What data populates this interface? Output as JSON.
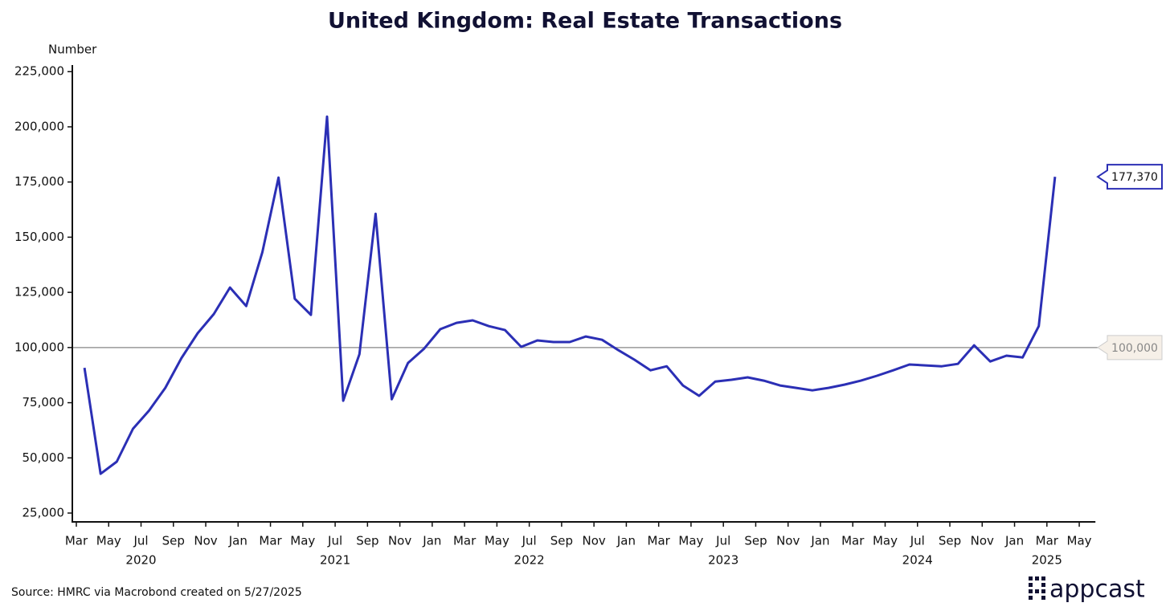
{
  "chart_data": {
    "type": "line",
    "title": "United Kingdom: Real Estate Transactions",
    "y_label": "Number",
    "source": "Source: HMRC via Macrobond created on 5/27/2025",
    "logo": "appcast",
    "color": "#2b2fb5",
    "x": [
      "2020-03",
      "2020-04",
      "2020-05",
      "2020-06",
      "2020-07",
      "2020-08",
      "2020-09",
      "2020-10",
      "2020-11",
      "2020-12",
      "2021-01",
      "2021-02",
      "2021-03",
      "2021-04",
      "2021-05",
      "2021-06",
      "2021-07",
      "2021-08",
      "2021-09",
      "2021-10",
      "2021-11",
      "2021-12",
      "2022-01",
      "2022-02",
      "2022-03",
      "2022-04",
      "2022-05",
      "2022-06",
      "2022-07",
      "2022-08",
      "2022-09",
      "2022-10",
      "2022-11",
      "2022-12",
      "2023-01",
      "2023-02",
      "2023-03",
      "2023-04",
      "2023-05",
      "2023-06",
      "2023-07",
      "2023-08",
      "2023-09",
      "2023-10",
      "2023-11",
      "2023-12",
      "2024-01",
      "2024-02",
      "2024-03",
      "2024-04",
      "2024-05",
      "2024-06",
      "2024-07",
      "2024-08",
      "2024-09",
      "2024-10",
      "2024-11",
      "2024-12",
      "2025-01",
      "2025-02",
      "2025-03"
    ],
    "values": [
      90800,
      42800,
      48300,
      63200,
      71500,
      81700,
      95200,
      106500,
      115200,
      127200,
      118800,
      143200,
      177000,
      122100,
      114800,
      204600,
      75900,
      97000,
      160600,
      76600,
      93000,
      99500,
      108300,
      111200,
      112300,
      109700,
      107900,
      100300,
      103200,
      102500,
      102500,
      105000,
      103500,
      98800,
      94500,
      89700,
      91500,
      82800,
      78100,
      84600,
      85400,
      86500,
      85000,
      82800,
      81700,
      80600,
      81700,
      83200,
      85000,
      87200,
      89700,
      92300,
      91900,
      91500,
      92600,
      101000,
      93700,
      96300,
      95500,
      109700,
      177370
    ],
    "value_labels": [
      null,
      null,
      null,
      null,
      null,
      null,
      null,
      null,
      null,
      null,
      null,
      null,
      null,
      null,
      null,
      null,
      null,
      null,
      null,
      null,
      null,
      null,
      null,
      null,
      null,
      null,
      null,
      null,
      null,
      null,
      null,
      null,
      null,
      null,
      null,
      null,
      null,
      null,
      null,
      null,
      null,
      null,
      null,
      null,
      null,
      null,
      null,
      null,
      null,
      null,
      null,
      null,
      null,
      null,
      null,
      null,
      null,
      null,
      null,
      null,
      "177,370"
    ],
    "xlim": [
      "2020-03",
      "2025-06"
    ],
    "xticks": [
      {
        "value": "2020-03",
        "label": "Mar"
      },
      {
        "value": "2020-05",
        "label": "May"
      },
      {
        "value": "2020-07",
        "label": "Jul"
      },
      {
        "value": "2020-09",
        "label": "Sep"
      },
      {
        "value": "2020-11",
        "label": "Nov"
      },
      {
        "value": "2021-01",
        "label": "Jan"
      },
      {
        "value": "2021-03",
        "label": "Mar"
      },
      {
        "value": "2021-05",
        "label": "May"
      },
      {
        "value": "2021-07",
        "label": "Jul"
      },
      {
        "value": "2021-09",
        "label": "Sep"
      },
      {
        "value": "2021-11",
        "label": "Nov"
      },
      {
        "value": "2022-01",
        "label": "Jan"
      },
      {
        "value": "2022-03",
        "label": "Mar"
      },
      {
        "value": "2022-05",
        "label": "May"
      },
      {
        "value": "2022-07",
        "label": "Jul"
      },
      {
        "value": "2022-09",
        "label": "Sep"
      },
      {
        "value": "2022-11",
        "label": "Nov"
      },
      {
        "value": "2023-01",
        "label": "Jan"
      },
      {
        "value": "2023-03",
        "label": "Mar"
      },
      {
        "value": "2023-05",
        "label": "May"
      },
      {
        "value": "2023-07",
        "label": "Jul"
      },
      {
        "value": "2023-09",
        "label": "Sep"
      },
      {
        "value": "2023-11",
        "label": "Nov"
      },
      {
        "value": "2024-01",
        "label": "Jan"
      },
      {
        "value": "2024-03",
        "label": "Mar"
      },
      {
        "value": "2024-05",
        "label": "May"
      },
      {
        "value": "2024-07",
        "label": "Jul"
      },
      {
        "value": "2024-09",
        "label": "Sep"
      },
      {
        "value": "2024-11",
        "label": "Nov"
      },
      {
        "value": "2025-01",
        "label": "Jan"
      },
      {
        "value": "2025-03",
        "label": "Mar"
      },
      {
        "value": "2025-05",
        "label": "May"
      }
    ],
    "year_labels": [
      {
        "value": "2020-07",
        "label": "2020"
      },
      {
        "value": "2021-07",
        "label": "2021"
      },
      {
        "value": "2022-07",
        "label": "2022"
      },
      {
        "value": "2023-07",
        "label": "2023"
      },
      {
        "value": "2024-07",
        "label": "2024"
      },
      {
        "value": "2025-03",
        "label": "2025"
      }
    ],
    "ylim": [
      21000,
      228000
    ],
    "yticks": [
      {
        "value": 25000,
        "label": "25,000"
      },
      {
        "value": 50000,
        "label": "50,000"
      },
      {
        "value": 75000,
        "label": "75,000"
      },
      {
        "value": 100000,
        "label": "100,000"
      },
      {
        "value": 125000,
        "label": "125,000"
      },
      {
        "value": 150000,
        "label": "150,000"
      },
      {
        "value": 175000,
        "label": "175,000"
      },
      {
        "value": 200000,
        "label": "200,000"
      },
      {
        "value": 225000,
        "label": "225,000"
      }
    ],
    "reference_line": {
      "value": 100000,
      "label": "100,000"
    }
  }
}
